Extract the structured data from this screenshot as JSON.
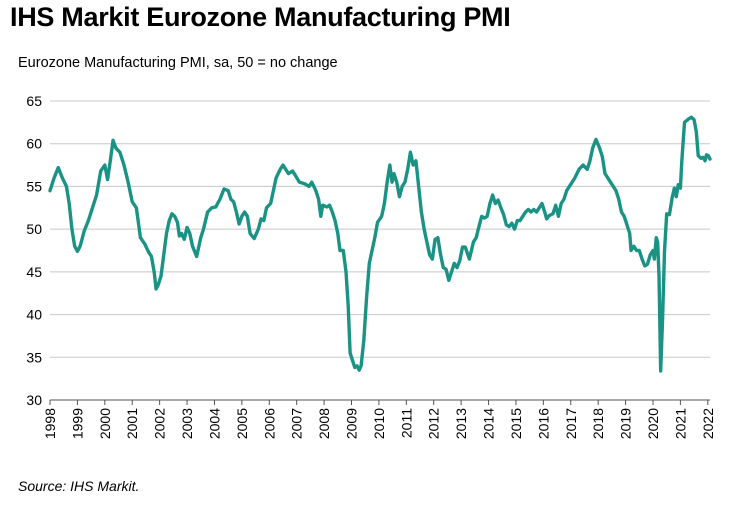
{
  "chart_data": {
    "type": "line",
    "title": "IHS Markit Eurozone Manufacturing PMI",
    "subtitle": "Eurozone Manufacturing PMI, sa, 50 = no change",
    "source": "Source: IHS Markit.",
    "xlabel": "",
    "ylabel": "",
    "ylim": [
      30,
      65
    ],
    "yticks": [
      30,
      35,
      40,
      45,
      50,
      55,
      60,
      65
    ],
    "xlim": [
      1998.0,
      2022.08
    ],
    "xticks": [
      1998,
      1999,
      2000,
      2001,
      2002,
      2003,
      2004,
      2005,
      2006,
      2007,
      2008,
      2009,
      2010,
      2011,
      2012,
      2013,
      2014,
      2015,
      2016,
      2017,
      2018,
      2019,
      2020,
      2021,
      2022
    ],
    "grid": true,
    "legend": "none",
    "series": [
      {
        "name": "Eurozone Manufacturing PMI",
        "color": "#1a9385",
        "points": [
          [
            1998.0,
            54.5
          ],
          [
            1998.15,
            56.0
          ],
          [
            1998.3,
            57.2
          ],
          [
            1998.45,
            56.0
          ],
          [
            1998.6,
            55.0
          ],
          [
            1998.7,
            53.0
          ],
          [
            1998.8,
            50.0
          ],
          [
            1998.9,
            48.0
          ],
          [
            1999.0,
            47.4
          ],
          [
            1999.1,
            48.0
          ],
          [
            1999.25,
            49.8
          ],
          [
            1999.4,
            51.0
          ],
          [
            1999.55,
            52.5
          ],
          [
            1999.7,
            54.0
          ],
          [
            1999.85,
            56.8
          ],
          [
            2000.0,
            57.5
          ],
          [
            2000.1,
            55.8
          ],
          [
            2000.2,
            58.0
          ],
          [
            2000.3,
            60.4
          ],
          [
            2000.4,
            59.5
          ],
          [
            2000.55,
            59.0
          ],
          [
            2000.7,
            57.5
          ],
          [
            2000.85,
            55.5
          ],
          [
            2001.0,
            53.2
          ],
          [
            2001.15,
            52.5
          ],
          [
            2001.3,
            49.0
          ],
          [
            2001.45,
            48.3
          ],
          [
            2001.6,
            47.3
          ],
          [
            2001.7,
            46.8
          ],
          [
            2001.8,
            45.0
          ],
          [
            2001.87,
            43.0
          ],
          [
            2001.95,
            43.5
          ],
          [
            2002.05,
            44.5
          ],
          [
            2002.15,
            47.0
          ],
          [
            2002.25,
            49.5
          ],
          [
            2002.35,
            51.0
          ],
          [
            2002.45,
            51.8
          ],
          [
            2002.55,
            51.5
          ],
          [
            2002.65,
            50.8
          ],
          [
            2002.72,
            49.2
          ],
          [
            2002.8,
            49.5
          ],
          [
            2002.9,
            48.8
          ],
          [
            2003.0,
            50.2
          ],
          [
            2003.1,
            49.5
          ],
          [
            2003.2,
            48.0
          ],
          [
            2003.35,
            46.8
          ],
          [
            2003.5,
            49.0
          ],
          [
            2003.6,
            50.0
          ],
          [
            2003.75,
            52.0
          ],
          [
            2003.9,
            52.5
          ],
          [
            2004.05,
            52.6
          ],
          [
            2004.2,
            53.5
          ],
          [
            2004.35,
            54.7
          ],
          [
            2004.5,
            54.5
          ],
          [
            2004.6,
            53.5
          ],
          [
            2004.7,
            53.2
          ],
          [
            2004.8,
            52.0
          ],
          [
            2004.9,
            50.6
          ],
          [
            2005.0,
            51.5
          ],
          [
            2005.1,
            52.0
          ],
          [
            2005.2,
            51.5
          ],
          [
            2005.3,
            49.5
          ],
          [
            2005.45,
            48.9
          ],
          [
            2005.6,
            50.0
          ],
          [
            2005.7,
            51.2
          ],
          [
            2005.8,
            51.0
          ],
          [
            2005.9,
            52.5
          ],
          [
            2006.05,
            53.0
          ],
          [
            2006.15,
            54.5
          ],
          [
            2006.25,
            56.0
          ],
          [
            2006.4,
            57.0
          ],
          [
            2006.5,
            57.5
          ],
          [
            2006.6,
            57.0
          ],
          [
            2006.7,
            56.5
          ],
          [
            2006.85,
            56.8
          ],
          [
            2006.95,
            56.3
          ],
          [
            2007.1,
            55.5
          ],
          [
            2007.3,
            55.3
          ],
          [
            2007.45,
            55.0
          ],
          [
            2007.55,
            55.5
          ],
          [
            2007.7,
            54.5
          ],
          [
            2007.8,
            53.5
          ],
          [
            2007.88,
            51.5
          ],
          [
            2007.95,
            52.8
          ],
          [
            2008.1,
            52.6
          ],
          [
            2008.2,
            52.8
          ],
          [
            2008.3,
            52.0
          ],
          [
            2008.4,
            51.0
          ],
          [
            2008.5,
            49.5
          ],
          [
            2008.58,
            47.5
          ],
          [
            2008.7,
            47.5
          ],
          [
            2008.8,
            45.0
          ],
          [
            2008.88,
            41.0
          ],
          [
            2008.95,
            35.5
          ],
          [
            2009.05,
            34.5
          ],
          [
            2009.12,
            33.8
          ],
          [
            2009.2,
            34.0
          ],
          [
            2009.28,
            33.5
          ],
          [
            2009.35,
            34.0
          ],
          [
            2009.45,
            37.0
          ],
          [
            2009.55,
            42.0
          ],
          [
            2009.65,
            46.0
          ],
          [
            2009.75,
            47.5
          ],
          [
            2009.85,
            49.0
          ],
          [
            2009.95,
            50.8
          ],
          [
            2010.1,
            51.5
          ],
          [
            2010.2,
            53.0
          ],
          [
            2010.3,
            55.5
          ],
          [
            2010.4,
            57.5
          ],
          [
            2010.48,
            55.5
          ],
          [
            2010.55,
            56.5
          ],
          [
            2010.65,
            55.5
          ],
          [
            2010.75,
            53.8
          ],
          [
            2010.85,
            55.0
          ],
          [
            2010.95,
            55.5
          ],
          [
            2011.05,
            57.0
          ],
          [
            2011.15,
            59.0
          ],
          [
            2011.25,
            57.5
          ],
          [
            2011.35,
            58.0
          ],
          [
            2011.45,
            55.0
          ],
          [
            2011.55,
            52.0
          ],
          [
            2011.65,
            50.0
          ],
          [
            2011.75,
            48.5
          ],
          [
            2011.85,
            47.0
          ],
          [
            2011.95,
            46.5
          ],
          [
            2012.05,
            48.8
          ],
          [
            2012.15,
            49.0
          ],
          [
            2012.25,
            47.0
          ],
          [
            2012.35,
            45.5
          ],
          [
            2012.45,
            45.3
          ],
          [
            2012.55,
            44.0
          ],
          [
            2012.65,
            45.0
          ],
          [
            2012.75,
            46.0
          ],
          [
            2012.85,
            45.5
          ],
          [
            2012.95,
            46.3
          ],
          [
            2013.05,
            47.9
          ],
          [
            2013.15,
            47.9
          ],
          [
            2013.3,
            46.5
          ],
          [
            2013.45,
            48.5
          ],
          [
            2013.55,
            49.0
          ],
          [
            2013.65,
            50.3
          ],
          [
            2013.75,
            51.5
          ],
          [
            2013.85,
            51.3
          ],
          [
            2013.95,
            51.5
          ],
          [
            2014.05,
            53.0
          ],
          [
            2014.15,
            54.0
          ],
          [
            2014.25,
            53.0
          ],
          [
            2014.35,
            53.4
          ],
          [
            2014.45,
            52.5
          ],
          [
            2014.55,
            51.7
          ],
          [
            2014.65,
            50.5
          ],
          [
            2014.75,
            50.3
          ],
          [
            2014.85,
            50.7
          ],
          [
            2014.95,
            50.0
          ],
          [
            2015.05,
            51.0
          ],
          [
            2015.15,
            51.0
          ],
          [
            2015.25,
            51.5
          ],
          [
            2015.35,
            52.0
          ],
          [
            2015.45,
            52.3
          ],
          [
            2015.55,
            52.0
          ],
          [
            2015.65,
            52.3
          ],
          [
            2015.75,
            52.0
          ],
          [
            2015.85,
            52.5
          ],
          [
            2015.95,
            53.0
          ],
          [
            2016.05,
            52.0
          ],
          [
            2016.12,
            51.2
          ],
          [
            2016.22,
            51.6
          ],
          [
            2016.35,
            51.8
          ],
          [
            2016.45,
            52.8
          ],
          [
            2016.55,
            51.5
          ],
          [
            2016.65,
            53.0
          ],
          [
            2016.75,
            53.5
          ],
          [
            2016.85,
            54.5
          ],
          [
            2016.95,
            55.0
          ],
          [
            2017.05,
            55.5
          ],
          [
            2017.15,
            56.0
          ],
          [
            2017.3,
            57.0
          ],
          [
            2017.45,
            57.5
          ],
          [
            2017.6,
            57.0
          ],
          [
            2017.7,
            58.0
          ],
          [
            2017.8,
            59.5
          ],
          [
            2017.92,
            60.5
          ],
          [
            2018.05,
            59.5
          ],
          [
            2018.15,
            58.5
          ],
          [
            2018.25,
            56.5
          ],
          [
            2018.35,
            56.0
          ],
          [
            2018.45,
            55.5
          ],
          [
            2018.55,
            55.0
          ],
          [
            2018.65,
            54.5
          ],
          [
            2018.75,
            53.5
          ],
          [
            2018.85,
            52.0
          ],
          [
            2018.95,
            51.5
          ],
          [
            2019.05,
            50.5
          ],
          [
            2019.15,
            49.5
          ],
          [
            2019.2,
            47.5
          ],
          [
            2019.3,
            48.0
          ],
          [
            2019.4,
            47.5
          ],
          [
            2019.5,
            47.5
          ],
          [
            2019.6,
            46.5
          ],
          [
            2019.7,
            45.7
          ],
          [
            2019.8,
            45.9
          ],
          [
            2019.9,
            47.0
          ],
          [
            2020.0,
            47.5
          ],
          [
            2020.05,
            46.5
          ],
          [
            2020.12,
            49.0
          ],
          [
            2020.17,
            48.5
          ],
          [
            2020.22,
            44.5
          ],
          [
            2020.28,
            33.4
          ],
          [
            2020.35,
            39.5
          ],
          [
            2020.42,
            47.4
          ],
          [
            2020.5,
            51.8
          ],
          [
            2020.6,
            51.7
          ],
          [
            2020.7,
            53.7
          ],
          [
            2020.78,
            54.8
          ],
          [
            2020.85,
            53.8
          ],
          [
            2020.92,
            55.2
          ],
          [
            2021.0,
            54.8
          ],
          [
            2021.05,
            57.9
          ],
          [
            2021.15,
            62.5
          ],
          [
            2021.3,
            62.9
          ],
          [
            2021.4,
            63.1
          ],
          [
            2021.5,
            62.8
          ],
          [
            2021.58,
            61.4
          ],
          [
            2021.65,
            58.6
          ],
          [
            2021.75,
            58.3
          ],
          [
            2021.83,
            58.4
          ],
          [
            2021.9,
            58.0
          ],
          [
            2021.95,
            58.7
          ],
          [
            2022.02,
            58.6
          ],
          [
            2022.08,
            58.2
          ]
        ]
      }
    ]
  }
}
